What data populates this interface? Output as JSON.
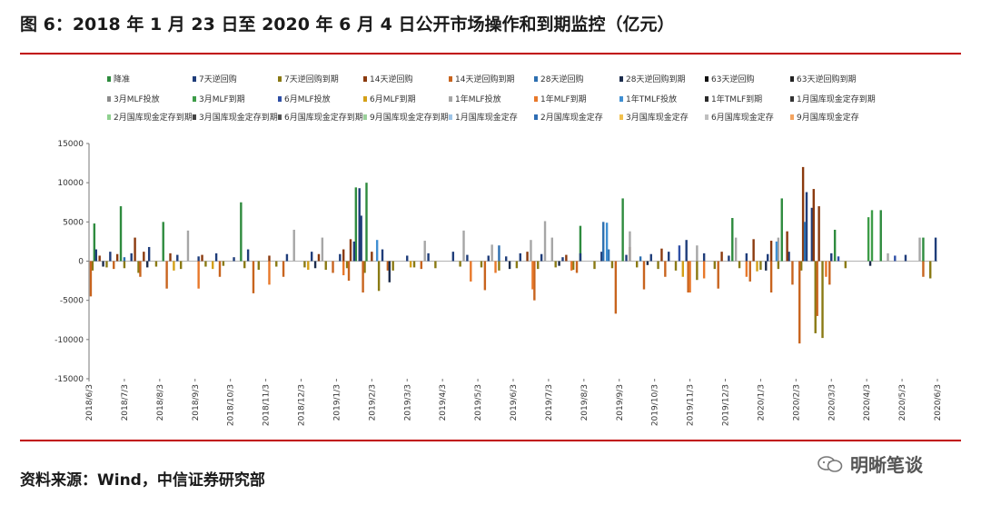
{
  "header": {
    "title": "图 6：2018 年 1 月 23 日至 2020 年 6 月 4 日公开市场操作和到期监控（亿元）"
  },
  "footer": {
    "source": "资料来源：Wind，中信证券研究部",
    "watermark": "明晰笔谈"
  },
  "chart_data": {
    "type": "bar",
    "ylim": [
      -15000,
      15000
    ],
    "yticks": [
      15000,
      10000,
      5000,
      0,
      -5000,
      -10000,
      -15000
    ],
    "xlabels": [
      "2018/6/3",
      "2018/7/3",
      "2018/8/3",
      "2018/9/3",
      "2018/10/3",
      "2018/11/3",
      "2018/12/3",
      "2019/1/3",
      "2019/2/3",
      "2019/3/3",
      "2019/4/3",
      "2019/5/3",
      "2019/6/3",
      "2019/7/3",
      "2019/8/3",
      "2019/9/3",
      "2019/10/3",
      "2019/11/3",
      "2019/12/3",
      "2020/1/3",
      "2020/2/3",
      "2020/3/3",
      "2020/4/3",
      "2020/5/3",
      "2020/6/3"
    ],
    "legend": [
      {
        "name": "降准",
        "color": "#2e8b3e"
      },
      {
        "name": "7天逆回购",
        "color": "#1f3d7a"
      },
      {
        "name": "7天逆回购到期",
        "color": "#8a7a14"
      },
      {
        "name": "14天逆回购",
        "color": "#8b3a0e"
      },
      {
        "name": "14天逆回购到期",
        "color": "#c8641e"
      },
      {
        "name": "28天逆回购",
        "color": "#2d6fb0"
      },
      {
        "name": "28天逆回购到期",
        "color": "#1c2c4c"
      },
      {
        "name": "63天逆回购",
        "color": "#111111"
      },
      {
        "name": "63天逆回购到期",
        "color": "#222222"
      },
      {
        "name": "3月MLF投放",
        "color": "#8c8c8c"
      },
      {
        "name": "3月MLF到期",
        "color": "#3d9c48"
      },
      {
        "name": "6月MLF投放",
        "color": "#2f4fa6"
      },
      {
        "name": "6月MLF到期",
        "color": "#d4a017"
      },
      {
        "name": "1年MLF投放",
        "color": "#a6a6a6"
      },
      {
        "name": "1年MLF到期",
        "color": "#e8782a"
      },
      {
        "name": "1年TMLF投放",
        "color": "#3f8fd2"
      },
      {
        "name": "1年TMLF到期",
        "color": "#2b2b2b"
      },
      {
        "name": "1月国库现金定存到期",
        "color": "#333333"
      },
      {
        "name": "2月国库现金定存到期",
        "color": "#8fd18f"
      },
      {
        "name": "3月国库现金定存到期",
        "color": "#444444"
      },
      {
        "name": "6月国库现金定存到期",
        "color": "#555555"
      },
      {
        "name": "9月国库现金定存到期",
        "color": "#9ad09a"
      },
      {
        "name": "1月国库现金定存",
        "color": "#9ec5e8"
      },
      {
        "name": "2月国库现金定存",
        "color": "#2e6db4"
      },
      {
        "name": "3月国库现金定存",
        "color": "#f2c14e"
      },
      {
        "name": "6月国库现金定存",
        "color": "#bfbfbf"
      },
      {
        "name": "9月国库现金定存",
        "color": "#f4a460"
      }
    ],
    "series": [
      {
        "name": "降准",
        "points": [
          [
            0.15,
            4800
          ],
          [
            0.9,
            7000
          ],
          [
            2.1,
            5000
          ],
          [
            4.3,
            7500
          ],
          [
            7.55,
            9400
          ],
          [
            7.85,
            10000
          ],
          [
            13.9,
            4500
          ],
          [
            15.1,
            8000
          ],
          [
            18.2,
            5500
          ],
          [
            19.6,
            8000
          ],
          [
            21.1,
            4000
          ],
          [
            22.4,
            6500
          ],
          [
            23.6,
            3000
          ]
        ]
      },
      {
        "name": "7天逆回购",
        "points": [
          [
            0.2,
            1500
          ],
          [
            0.6,
            1200
          ],
          [
            1.2,
            1000
          ],
          [
            1.7,
            1800
          ],
          [
            2.5,
            800
          ],
          [
            3.1,
            600
          ],
          [
            3.6,
            1000
          ],
          [
            4.1,
            500
          ],
          [
            4.5,
            1500
          ],
          [
            5.6,
            900
          ],
          [
            6.3,
            1200
          ],
          [
            7.1,
            900
          ],
          [
            7.5,
            2500
          ],
          [
            7.65,
            9300
          ],
          [
            7.7,
            5800
          ],
          [
            8.3,
            1500
          ],
          [
            9.0,
            700
          ],
          [
            9.6,
            1000
          ],
          [
            10.3,
            1200
          ],
          [
            10.7,
            800
          ],
          [
            11.3,
            700
          ],
          [
            11.8,
            600
          ],
          [
            12.2,
            1000
          ],
          [
            12.8,
            900
          ],
          [
            13.4,
            500
          ],
          [
            13.9,
            1000
          ],
          [
            14.5,
            1200
          ],
          [
            15.2,
            800
          ],
          [
            15.9,
            900
          ],
          [
            16.4,
            1200
          ],
          [
            16.9,
            2700
          ],
          [
            17.4,
            1000
          ],
          [
            18.1,
            700
          ],
          [
            18.6,
            1000
          ],
          [
            19.2,
            900
          ],
          [
            19.8,
            1200
          ],
          [
            20.3,
            8800
          ],
          [
            20.45,
            6800
          ],
          [
            21.0,
            1000
          ],
          [
            23.1,
            800
          ],
          [
            23.95,
            3000
          ]
        ]
      },
      {
        "name": "7天逆回购到期",
        "points": [
          [
            0.1,
            -1200
          ],
          [
            0.5,
            -800
          ],
          [
            1.0,
            -900
          ],
          [
            1.4,
            -1500
          ],
          [
            1.9,
            -700
          ],
          [
            2.6,
            -1000
          ],
          [
            3.3,
            -700
          ],
          [
            3.8,
            -600
          ],
          [
            4.4,
            -900
          ],
          [
            4.8,
            -1100
          ],
          [
            5.3,
            -700
          ],
          [
            6.1,
            -800
          ],
          [
            6.7,
            -1100
          ],
          [
            7.3,
            -900
          ],
          [
            7.8,
            -1500
          ],
          [
            8.2,
            -3800
          ],
          [
            8.6,
            -1200
          ],
          [
            9.2,
            -800
          ],
          [
            9.8,
            -900
          ],
          [
            10.5,
            -700
          ],
          [
            11.1,
            -800
          ],
          [
            11.6,
            -1200
          ],
          [
            12.1,
            -900
          ],
          [
            12.7,
            -1000
          ],
          [
            13.2,
            -800
          ],
          [
            13.7,
            -1100
          ],
          [
            14.3,
            -1000
          ],
          [
            14.8,
            -900
          ],
          [
            15.5,
            -800
          ],
          [
            16.1,
            -1000
          ],
          [
            16.6,
            -1200
          ],
          [
            17.2,
            -2400
          ],
          [
            17.7,
            -1000
          ],
          [
            18.4,
            -900
          ],
          [
            19.0,
            -1100
          ],
          [
            19.5,
            -1000
          ],
          [
            20.15,
            -1200
          ],
          [
            20.55,
            -9200
          ],
          [
            20.75,
            -9800
          ],
          [
            21.4,
            -900
          ],
          [
            23.8,
            -2200
          ]
        ]
      },
      {
        "name": "14天逆回购",
        "points": [
          [
            0.3,
            700
          ],
          [
            0.8,
            900
          ],
          [
            1.3,
            3000
          ],
          [
            1.55,
            1200
          ],
          [
            2.3,
            1000
          ],
          [
            3.2,
            800
          ],
          [
            5.1,
            700
          ],
          [
            6.5,
            900
          ],
          [
            7.2,
            1500
          ],
          [
            7.4,
            2800
          ],
          [
            8.0,
            1200
          ],
          [
            12.4,
            1200
          ],
          [
            13.5,
            800
          ],
          [
            15.3,
            1800
          ],
          [
            16.2,
            1600
          ],
          [
            17.9,
            1200
          ],
          [
            18.8,
            2800
          ],
          [
            19.3,
            2600
          ],
          [
            19.75,
            3800
          ],
          [
            20.2,
            12000
          ],
          [
            20.5,
            9200
          ],
          [
            20.65,
            7000
          ]
        ]
      },
      {
        "name": "14天逆回购到期",
        "points": [
          [
            0.05,
            -4500
          ],
          [
            0.7,
            -1000
          ],
          [
            1.45,
            -2000
          ],
          [
            2.2,
            -3500
          ],
          [
            3.7,
            -2000
          ],
          [
            4.65,
            -4100
          ],
          [
            5.5,
            -2000
          ],
          [
            6.9,
            -1500
          ],
          [
            7.35,
            -2500
          ],
          [
            7.75,
            -4000
          ],
          [
            8.45,
            -1200
          ],
          [
            9.4,
            -1000
          ],
          [
            11.2,
            -3700
          ],
          [
            12.6,
            -5000
          ],
          [
            13.8,
            -1500
          ],
          [
            14.9,
            -6700
          ],
          [
            15.7,
            -3600
          ],
          [
            16.3,
            -2000
          ],
          [
            16.95,
            -4000
          ],
          [
            17.8,
            -3500
          ],
          [
            18.7,
            -2600
          ],
          [
            19.3,
            -4000
          ],
          [
            19.9,
            -3000
          ],
          [
            20.1,
            -10500
          ],
          [
            20.6,
            -7000
          ],
          [
            20.95,
            -3000
          ],
          [
            23.6,
            -2000
          ]
        ]
      },
      {
        "name": "28天逆回购",
        "points": [
          [
            1.0,
            500
          ],
          [
            11.6,
            2000
          ],
          [
            14.55,
            5000
          ],
          [
            14.7,
            1500
          ],
          [
            15.6,
            600
          ],
          [
            20.25,
            5000
          ]
        ]
      },
      {
        "name": "1年MLF投放",
        "points": [
          [
            2.8,
            3900
          ],
          [
            5.8,
            4000
          ],
          [
            6.6,
            3000
          ],
          [
            9.5,
            2600
          ],
          [
            10.6,
            3900
          ],
          [
            11.4,
            2100
          ],
          [
            12.5,
            2700
          ],
          [
            12.9,
            5100
          ],
          [
            13.1,
            3000
          ],
          [
            15.3,
            3800
          ],
          [
            17.2,
            2000
          ],
          [
            18.3,
            3000
          ],
          [
            19.5,
            3000
          ],
          [
            22.6,
            1000
          ],
          [
            23.5,
            3000
          ]
        ]
      },
      {
        "name": "1年MLF到期",
        "points": [
          [
            3.1,
            -3500
          ],
          [
            5.1,
            -3000
          ],
          [
            7.2,
            -1800
          ],
          [
            10.8,
            -2600
          ],
          [
            11.5,
            -1500
          ],
          [
            12.55,
            -3600
          ],
          [
            13.65,
            -1200
          ],
          [
            17.0,
            -4000
          ],
          [
            17.4,
            -2200
          ],
          [
            18.6,
            -2000
          ],
          [
            20.85,
            -2000
          ]
        ]
      },
      {
        "name": "1年TMLF投放",
        "points": [
          [
            8.15,
            2700
          ],
          [
            14.65,
            4900
          ],
          [
            19.45,
            2500
          ]
        ]
      },
      {
        "name": "28天逆回购到期",
        "points": [
          [
            0.4,
            -700
          ],
          [
            1.65,
            -800
          ],
          [
            6.4,
            -900
          ],
          [
            8.5,
            -2700
          ],
          [
            11.9,
            -1000
          ],
          [
            13.3,
            -600
          ],
          [
            15.8,
            -500
          ],
          [
            19.15,
            -1200
          ],
          [
            22.1,
            -600
          ]
        ]
      },
      {
        "name": "3月MLF到期",
        "points": [
          [
            22.05,
            5600
          ],
          [
            22.15,
            6500
          ]
        ]
      },
      {
        "name": "6月MLF投放",
        "points": [
          [
            16.7,
            2000
          ],
          [
            21.2,
            600
          ],
          [
            22.8,
            700
          ]
        ]
      },
      {
        "name": "6月MLF到期",
        "points": [
          [
            2.4,
            -1200
          ],
          [
            3.5,
            -1000
          ],
          [
            6.2,
            -1100
          ],
          [
            9.1,
            -800
          ],
          [
            16.8,
            -2000
          ],
          [
            18.9,
            -1300
          ]
        ]
      }
    ]
  }
}
